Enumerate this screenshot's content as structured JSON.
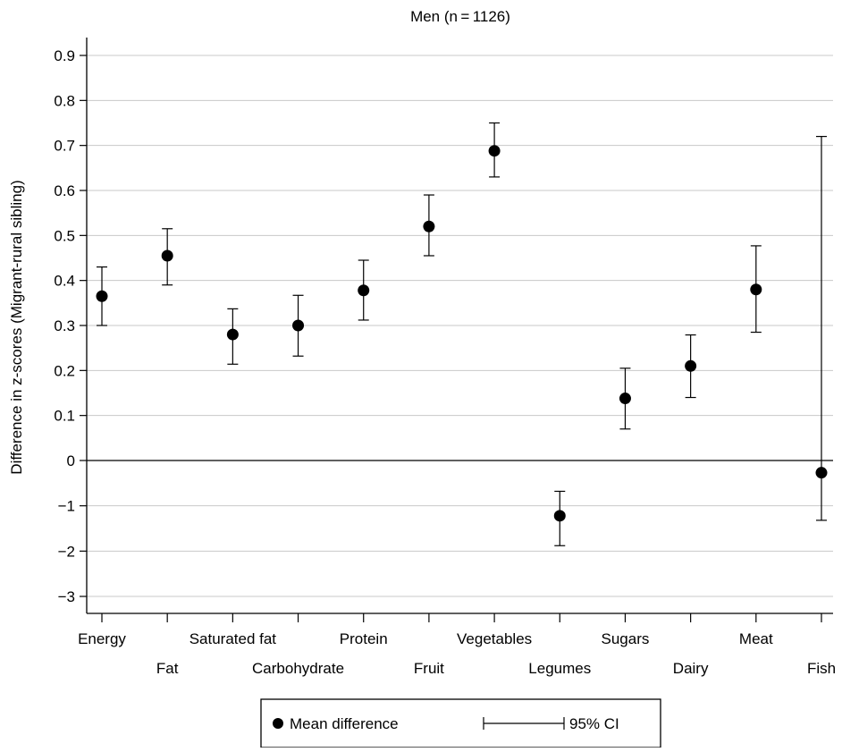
{
  "chart_data": {
    "type": "scatter",
    "title": "Men (n = 1126)",
    "ylabel": "Difference in z-scores (Migrant-rural sibling)",
    "xlabel": "",
    "ytick_labels": [
      "−3",
      "−2",
      "−1",
      "0",
      "0.1",
      "0.2",
      "0.3",
      "0.4",
      "0.5",
      "0.6",
      "0.7",
      "0.8",
      "0.9"
    ],
    "categories": [
      "Energy",
      "Fat",
      "Saturated fat",
      "Carbohydrate",
      "Protein",
      "Fruit",
      "Vegetables",
      "Legumes",
      "Sugars",
      "Dairy",
      "Meat",
      "Fish"
    ],
    "series": [
      {
        "name": "Mean difference",
        "values": [
          0.365,
          0.455,
          0.28,
          0.3,
          0.378,
          0.52,
          0.688,
          -1.22,
          0.138,
          0.21,
          0.38,
          -0.27
        ],
        "ci_lower": [
          0.3,
          0.39,
          0.214,
          0.232,
          0.312,
          0.455,
          0.63,
          -1.88,
          0.07,
          0.14,
          0.285,
          -1.32
        ],
        "ci_upper": [
          0.43,
          0.515,
          0.337,
          0.367,
          0.445,
          0.59,
          0.75,
          -0.68,
          0.205,
          0.279,
          0.477,
          0.72
        ]
      }
    ],
    "legend": {
      "position": "bottom",
      "point_label": "Mean difference",
      "ci_label": "95% CI"
    },
    "grid": true
  }
}
